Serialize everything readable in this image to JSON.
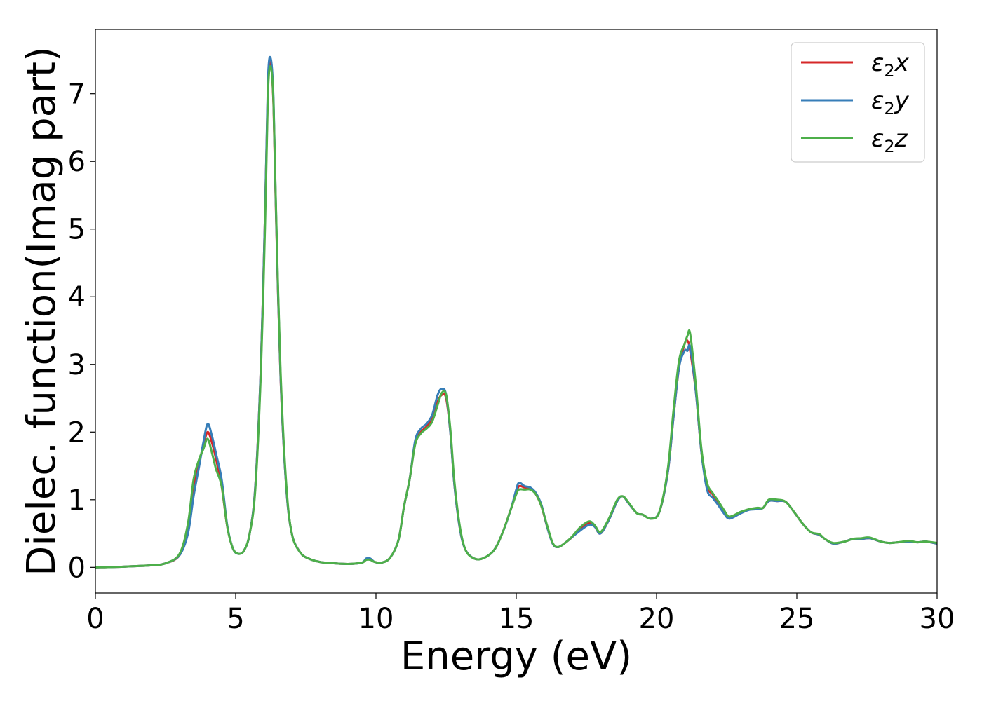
{
  "chart_data": {
    "type": "line",
    "title": "",
    "xlabel": "Energy (eV)",
    "ylabel": "Dielec. function(Imag part)",
    "xlim": [
      0,
      30
    ],
    "ylim": [
      -0.38,
      7.95
    ],
    "xticks": [
      "0",
      "5",
      "10",
      "15",
      "20",
      "25",
      "30"
    ],
    "yticks": [
      "0",
      "1",
      "2",
      "3",
      "4",
      "5",
      "6",
      "7"
    ],
    "grid": false,
    "legend_position": "top-right",
    "series": [
      {
        "name": "ε₂x",
        "legend_base": "ε",
        "legend_sub": "2",
        "legend_suffix": "x",
        "color": "#d62728",
        "x": [
          0,
          1,
          2,
          2.5,
          3,
          3.3,
          3.5,
          3.7,
          3.85,
          4.0,
          4.15,
          4.3,
          4.5,
          4.7,
          4.9,
          5.1,
          5.3,
          5.5,
          5.7,
          5.9,
          6.05,
          6.15,
          6.25,
          6.35,
          6.45,
          6.6,
          6.8,
          7.0,
          7.3,
          7.6,
          8,
          8.5,
          9,
          9.5,
          9.65,
          9.8,
          9.95,
          10.2,
          10.5,
          10.8,
          11.0,
          11.2,
          11.4,
          11.6,
          11.8,
          12.0,
          12.2,
          12.35,
          12.5,
          12.65,
          12.8,
          13.0,
          13.2,
          13.5,
          13.8,
          14.2,
          14.5,
          14.8,
          15.0,
          15.1,
          15.3,
          15.5,
          15.7,
          15.9,
          16.1,
          16.3,
          16.5,
          16.8,
          17.0,
          17.3,
          17.6,
          17.8,
          18.0,
          18.3,
          18.6,
          18.8,
          19.0,
          19.3,
          19.5,
          19.8,
          20.1,
          20.4,
          20.6,
          20.8,
          21.0,
          21.1,
          21.2,
          21.4,
          21.6,
          21.8,
          22.0,
          22.2,
          22.4,
          22.6,
          23.0,
          23.3,
          23.6,
          23.8,
          24.0,
          24.3,
          24.6,
          24.9,
          25.2,
          25.5,
          25.8,
          26.0,
          26.3,
          26.7,
          27.0,
          27.3,
          27.6,
          28.0,
          28.3,
          28.6,
          29.0,
          29.3,
          29.6,
          30
        ],
        "y": [
          0,
          0.01,
          0.03,
          0.06,
          0.18,
          0.55,
          1.15,
          1.55,
          1.8,
          2.0,
          1.85,
          1.6,
          1.2,
          0.6,
          0.28,
          0.2,
          0.25,
          0.5,
          1.2,
          3.0,
          5.3,
          7.1,
          7.45,
          6.8,
          5.0,
          2.8,
          1.2,
          0.5,
          0.22,
          0.13,
          0.08,
          0.06,
          0.05,
          0.07,
          0.12,
          0.12,
          0.08,
          0.07,
          0.14,
          0.4,
          0.9,
          1.3,
          1.85,
          2.0,
          2.08,
          2.2,
          2.45,
          2.55,
          2.5,
          2.0,
          1.2,
          0.55,
          0.25,
          0.13,
          0.13,
          0.25,
          0.5,
          0.85,
          1.1,
          1.2,
          1.18,
          1.17,
          1.08,
          0.9,
          0.6,
          0.35,
          0.3,
          0.38,
          0.45,
          0.58,
          0.66,
          0.6,
          0.5,
          0.7,
          0.98,
          1.05,
          0.95,
          0.8,
          0.78,
          0.72,
          0.82,
          1.4,
          2.2,
          2.95,
          3.3,
          3.35,
          3.2,
          2.6,
          1.7,
          1.2,
          1.08,
          0.95,
          0.82,
          0.73,
          0.8,
          0.86,
          0.86,
          0.88,
          0.98,
          0.98,
          0.97,
          0.82,
          0.65,
          0.52,
          0.48,
          0.42,
          0.35,
          0.38,
          0.42,
          0.42,
          0.43,
          0.38,
          0.36,
          0.37,
          0.38,
          0.37,
          0.38,
          0.35
        ]
      },
      {
        "name": "ε₂y",
        "legend_base": "ε",
        "legend_sub": "2",
        "legend_suffix": "y",
        "color": "#377eb8",
        "x": [
          0,
          1,
          2,
          2.5,
          3,
          3.3,
          3.5,
          3.7,
          3.85,
          4.0,
          4.15,
          4.3,
          4.5,
          4.7,
          4.9,
          5.1,
          5.3,
          5.5,
          5.7,
          5.9,
          6.05,
          6.15,
          6.25,
          6.35,
          6.45,
          6.6,
          6.8,
          7.0,
          7.3,
          7.6,
          8,
          8.5,
          9,
          9.5,
          9.65,
          9.8,
          9.95,
          10.2,
          10.5,
          10.8,
          11.0,
          11.2,
          11.4,
          11.6,
          11.8,
          12.0,
          12.2,
          12.35,
          12.5,
          12.65,
          12.8,
          13.0,
          13.2,
          13.5,
          13.8,
          14.2,
          14.5,
          14.8,
          15.0,
          15.1,
          15.3,
          15.5,
          15.7,
          15.9,
          16.1,
          16.3,
          16.5,
          16.8,
          17.0,
          17.3,
          17.6,
          17.8,
          18.0,
          18.3,
          18.6,
          18.8,
          19.0,
          19.3,
          19.5,
          19.8,
          20.1,
          20.4,
          20.6,
          20.8,
          21.0,
          21.1,
          21.2,
          21.4,
          21.6,
          21.8,
          22.0,
          22.2,
          22.4,
          22.6,
          23.0,
          23.3,
          23.6,
          23.8,
          24.0,
          24.3,
          24.6,
          24.9,
          25.2,
          25.5,
          25.8,
          26.0,
          26.3,
          26.7,
          27.0,
          27.3,
          27.6,
          28.0,
          28.3,
          28.6,
          29.0,
          29.3,
          29.6,
          30
        ],
        "y": [
          0,
          0.01,
          0.03,
          0.06,
          0.18,
          0.5,
          1.05,
          1.5,
          1.85,
          2.12,
          1.95,
          1.68,
          1.3,
          0.62,
          0.28,
          0.2,
          0.25,
          0.5,
          1.2,
          3.0,
          5.3,
          7.2,
          7.52,
          6.9,
          5.05,
          2.82,
          1.2,
          0.5,
          0.22,
          0.13,
          0.08,
          0.06,
          0.05,
          0.07,
          0.13,
          0.13,
          0.08,
          0.07,
          0.14,
          0.4,
          0.9,
          1.3,
          1.88,
          2.05,
          2.12,
          2.25,
          2.55,
          2.64,
          2.55,
          2.0,
          1.2,
          0.55,
          0.25,
          0.13,
          0.13,
          0.25,
          0.5,
          0.85,
          1.15,
          1.25,
          1.2,
          1.18,
          1.1,
          0.92,
          0.6,
          0.35,
          0.3,
          0.38,
          0.45,
          0.55,
          0.63,
          0.6,
          0.5,
          0.7,
          0.98,
          1.05,
          0.95,
          0.8,
          0.78,
          0.72,
          0.82,
          1.4,
          2.2,
          2.95,
          3.2,
          3.2,
          3.25,
          2.6,
          1.7,
          1.15,
          1.03,
          0.92,
          0.8,
          0.72,
          0.8,
          0.85,
          0.86,
          0.88,
          0.98,
          0.98,
          0.97,
          0.82,
          0.65,
          0.52,
          0.48,
          0.42,
          0.35,
          0.38,
          0.42,
          0.42,
          0.43,
          0.38,
          0.36,
          0.37,
          0.38,
          0.37,
          0.38,
          0.35
        ]
      },
      {
        "name": "ε₂z",
        "legend_base": "ε",
        "legend_sub": "2",
        "legend_suffix": "z",
        "color": "#4daf4a",
        "x": [
          0,
          1,
          2,
          2.5,
          3,
          3.3,
          3.5,
          3.7,
          3.85,
          4.0,
          4.15,
          4.3,
          4.5,
          4.7,
          4.9,
          5.1,
          5.3,
          5.5,
          5.7,
          5.9,
          6.05,
          6.15,
          6.25,
          6.35,
          6.45,
          6.6,
          6.8,
          7.0,
          7.3,
          7.6,
          8,
          8.5,
          9,
          9.5,
          9.65,
          9.8,
          9.95,
          10.2,
          10.5,
          10.8,
          11.0,
          11.2,
          11.4,
          11.6,
          11.8,
          12.0,
          12.2,
          12.35,
          12.5,
          12.65,
          12.8,
          13.0,
          13.2,
          13.5,
          13.8,
          14.2,
          14.5,
          14.8,
          15.0,
          15.1,
          15.3,
          15.5,
          15.7,
          15.9,
          16.1,
          16.3,
          16.5,
          16.8,
          17.0,
          17.3,
          17.6,
          17.8,
          18.0,
          18.3,
          18.6,
          18.8,
          19.0,
          19.3,
          19.5,
          19.8,
          20.1,
          20.4,
          20.6,
          20.8,
          21.0,
          21.1,
          21.2,
          21.4,
          21.6,
          21.8,
          22.0,
          22.2,
          22.4,
          22.6,
          23.0,
          23.3,
          23.6,
          23.8,
          24.0,
          24.3,
          24.6,
          24.9,
          25.2,
          25.5,
          25.8,
          26.0,
          26.3,
          26.7,
          27.0,
          27.3,
          27.6,
          28.0,
          28.3,
          28.6,
          29.0,
          29.3,
          29.6,
          30
        ],
        "y": [
          0,
          0.01,
          0.03,
          0.06,
          0.2,
          0.65,
          1.3,
          1.6,
          1.75,
          1.9,
          1.7,
          1.45,
          1.2,
          0.6,
          0.28,
          0.2,
          0.25,
          0.5,
          1.15,
          2.9,
          5.1,
          7.0,
          7.4,
          6.85,
          5.1,
          2.9,
          1.25,
          0.5,
          0.22,
          0.13,
          0.08,
          0.06,
          0.05,
          0.07,
          0.11,
          0.11,
          0.08,
          0.07,
          0.14,
          0.4,
          0.9,
          1.3,
          1.82,
          1.98,
          2.05,
          2.15,
          2.4,
          2.58,
          2.55,
          2.05,
          1.25,
          0.58,
          0.25,
          0.13,
          0.13,
          0.25,
          0.5,
          0.85,
          1.08,
          1.15,
          1.15,
          1.15,
          1.08,
          0.9,
          0.62,
          0.36,
          0.3,
          0.38,
          0.46,
          0.6,
          0.68,
          0.62,
          0.52,
          0.72,
          1.0,
          1.05,
          0.96,
          0.8,
          0.78,
          0.72,
          0.82,
          1.45,
          2.3,
          3.05,
          3.3,
          3.42,
          3.45,
          2.7,
          1.75,
          1.25,
          1.1,
          0.98,
          0.85,
          0.75,
          0.82,
          0.86,
          0.88,
          0.88,
          1.0,
          1.0,
          0.97,
          0.82,
          0.65,
          0.52,
          0.49,
          0.42,
          0.36,
          0.38,
          0.42,
          0.43,
          0.44,
          0.38,
          0.36,
          0.37,
          0.39,
          0.37,
          0.38,
          0.36
        ]
      }
    ]
  }
}
